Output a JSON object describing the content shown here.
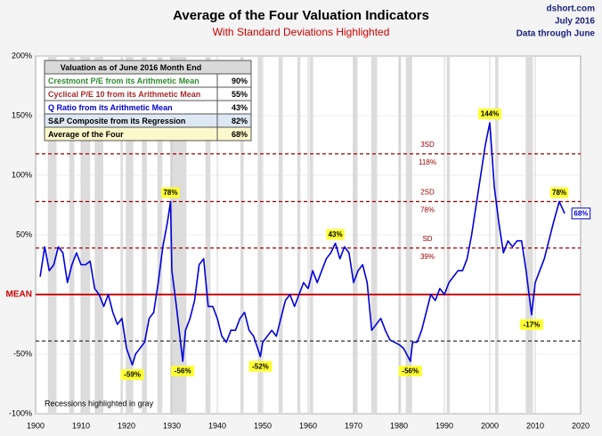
{
  "chart_data": {
    "type": "line",
    "title": "Average of the Four Valuation Indicators",
    "subtitle": "With Standard Deviations Highlighted",
    "source": "dshort.com",
    "date": "July 2016",
    "data_note": "Data through June",
    "note": "Recessions highlighted in gray",
    "xlim": [
      1900,
      2020
    ],
    "ylim": [
      -100,
      200
    ],
    "xticks": [
      1900,
      1910,
      1920,
      1930,
      1940,
      1950,
      1960,
      1970,
      1980,
      1990,
      2000,
      2010,
      2020
    ],
    "yticks": [
      {
        "value": 200,
        "label": "200%"
      },
      {
        "value": 150,
        "label": "150%"
      },
      {
        "value": 100,
        "label": "100%"
      },
      {
        "value": 50,
        "label": "50%"
      },
      {
        "value": 0,
        "label": "MEAN"
      },
      {
        "value": -50,
        "label": "-50%"
      },
      {
        "value": -100,
        "label": "-100%"
      }
    ],
    "grid": true,
    "mean_color": "#cc0000",
    "recession_color": "#dcdcdc",
    "recessions": [
      [
        1902.7,
        1904.6
      ],
      [
        1907.4,
        1908.5
      ],
      [
        1910.1,
        1912.0
      ],
      [
        1913.0,
        1914.9
      ],
      [
        1918.7,
        1919.2
      ],
      [
        1920.1,
        1921.5
      ],
      [
        1923.4,
        1924.5
      ],
      [
        1926.8,
        1927.9
      ],
      [
        1929.6,
        1933.2
      ],
      [
        1937.4,
        1938.5
      ],
      [
        1945.1,
        1945.8
      ],
      [
        1948.9,
        1949.8
      ],
      [
        1953.5,
        1954.4
      ],
      [
        1957.6,
        1958.3
      ],
      [
        1960.3,
        1961.1
      ],
      [
        1969.9,
        1970.9
      ],
      [
        1973.9,
        1975.2
      ],
      [
        1980.0,
        1980.5
      ],
      [
        1981.5,
        1982.9
      ],
      [
        1990.5,
        1991.2
      ],
      [
        2001.2,
        2001.9
      ],
      [
        2007.9,
        2009.5
      ]
    ],
    "sd_lines": [
      {
        "name": "3SD",
        "value": 118,
        "value_label": "118%",
        "color": "#a00000"
      },
      {
        "name": "2SD",
        "value": 78,
        "value_label": "78%",
        "color": "#a00000"
      },
      {
        "name": "SD",
        "value": 39,
        "value_label": "39%",
        "color": "#a00000"
      },
      {
        "value": -39,
        "color": "#333333"
      }
    ],
    "series": [
      {
        "name": "Average of the Four",
        "color": "#0000dd",
        "x": [
          1901,
          1902,
          1903,
          1904,
          1905,
          1906,
          1907,
          1908,
          1909,
          1910,
          1911,
          1912,
          1913,
          1914,
          1915,
          1916,
          1917,
          1918,
          1919,
          1920,
          1921.3,
          1922,
          1923,
          1924,
          1925,
          1926,
          1927,
          1928,
          1929,
          1929.7,
          1930,
          1931,
          1932.4,
          1933,
          1934,
          1935,
          1936,
          1937,
          1938,
          1939,
          1940,
          1941,
          1942,
          1943,
          1944,
          1945,
          1946,
          1947,
          1948,
          1949.5,
          1950,
          1951,
          1952,
          1953,
          1954,
          1955,
          1956,
          1957,
          1958,
          1959,
          1960,
          1961,
          1962,
          1963,
          1964,
          1965,
          1966,
          1967,
          1968,
          1969,
          1970,
          1971,
          1972,
          1973,
          1974,
          1975,
          1976,
          1977,
          1978,
          1979,
          1980,
          1981,
          1982.5,
          1983,
          1984,
          1985,
          1986,
          1987,
          1988,
          1989,
          1990,
          1991,
          1992,
          1993,
          1994,
          1995,
          1996,
          1997,
          1998,
          1999,
          2000,
          2001,
          2002,
          2003,
          2004,
          2005,
          2006,
          2007,
          2008,
          2009.2,
          2010,
          2011,
          2012,
          2013,
          2014,
          2015.3,
          2016.5
        ],
        "values": [
          15,
          40,
          20,
          25,
          40,
          35,
          10,
          25,
          35,
          25,
          25,
          28,
          5,
          0,
          -10,
          0,
          -15,
          -25,
          -20,
          -45,
          -59,
          -50,
          -45,
          -40,
          -20,
          -15,
          10,
          40,
          60,
          78,
          20,
          -10,
          -56,
          -30,
          -20,
          -5,
          25,
          30,
          -10,
          -10,
          -20,
          -35,
          -40,
          -30,
          -30,
          -20,
          -15,
          -30,
          -35,
          -52,
          -40,
          -35,
          -30,
          -35,
          -20,
          -5,
          0,
          -10,
          0,
          10,
          5,
          20,
          10,
          20,
          30,
          35,
          43,
          30,
          40,
          35,
          10,
          20,
          25,
          10,
          -30,
          -25,
          -20,
          -30,
          -38,
          -40,
          -42,
          -45,
          -56,
          -40,
          -40,
          -30,
          -15,
          0,
          -5,
          5,
          0,
          10,
          15,
          20,
          20,
          30,
          50,
          75,
          100,
          125,
          144,
          90,
          60,
          35,
          45,
          40,
          45,
          45,
          20,
          -17,
          10,
          20,
          30,
          45,
          60,
          78,
          68
        ]
      }
    ],
    "annotations": [
      {
        "x": 1929.7,
        "value": 78,
        "label": "78%"
      },
      {
        "x": 1921.3,
        "value": -59,
        "label": "-59%"
      },
      {
        "x": 1932.4,
        "value": -56,
        "label": "-56%"
      },
      {
        "x": 1949.5,
        "value": -52,
        "label": "-52%"
      },
      {
        "x": 1966,
        "value": 43,
        "label": "43%"
      },
      {
        "x": 1982.5,
        "value": -56,
        "label": "-56%"
      },
      {
        "x": 2000,
        "value": 144,
        "label": "144%"
      },
      {
        "x": 2009.2,
        "value": -17,
        "label": "-17%"
      },
      {
        "x": 2015.3,
        "value": 78,
        "label": "78%"
      },
      {
        "x": 2016.5,
        "value": 68,
        "label": "68%"
      }
    ]
  },
  "table": {
    "header": "Valuation as of June 2016 Month End",
    "rows": [
      {
        "name": "Crestmont P/E from its Arithmetic Mean",
        "value": "90%",
        "color": "#2e8b2e",
        "background": "#ffffff"
      },
      {
        "name": "Cyclical P/E 10 from its Arithmetic Mean",
        "value": "55%",
        "color": "#a52a2a",
        "background": "#ffffff"
      },
      {
        "name": "Q Ratio from its Arithmetic Mean",
        "value": "43%",
        "color": "#0000cc",
        "background": "#ffffff"
      },
      {
        "name": "S&P Composite from its Regression",
        "value": "82%",
        "color": "#000000",
        "background": "#dde8f4"
      },
      {
        "name": "Average of the Four",
        "value": "68%",
        "color": "#000000",
        "background": "#fdf8cc"
      }
    ]
  }
}
